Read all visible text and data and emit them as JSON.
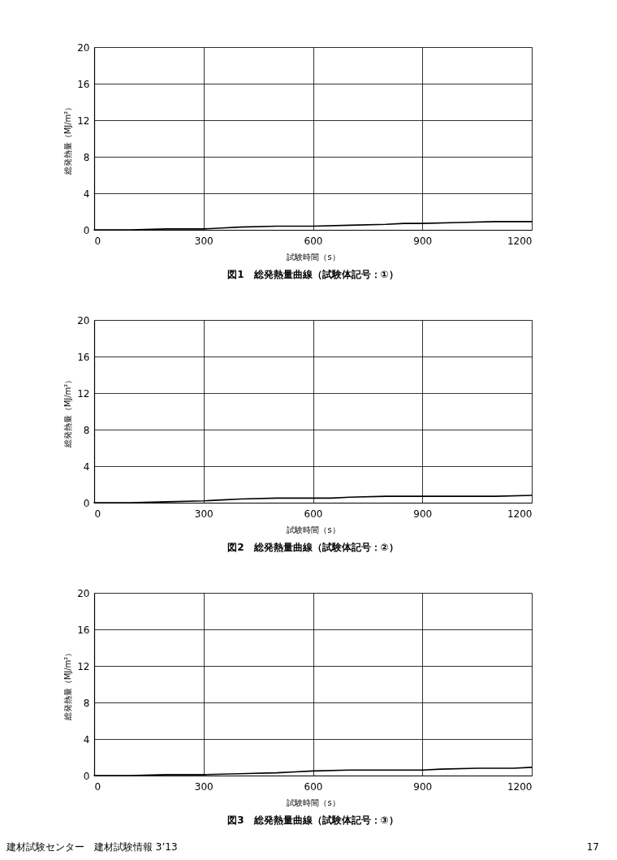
{
  "chart_data": [
    {
      "type": "line",
      "title": "図1　総発熱量曲線（試験体記号：①）",
      "xlabel": "試験時間（s）",
      "ylabel": "総発熱量（MJ/m²）",
      "xlim": [
        0,
        1200
      ],
      "ylim": [
        0,
        20
      ],
      "xticks": [
        0,
        300,
        600,
        900,
        1200
      ],
      "yticks": [
        0,
        4,
        8,
        12,
        16,
        20
      ],
      "grid": true,
      "line_style": "solid",
      "series": [
        {
          "color": "#000000",
          "x": [
            0,
            100,
            200,
            300,
            350,
            400,
            500,
            600,
            700,
            800,
            850,
            900,
            1000,
            1100,
            1200
          ],
          "values": [
            0,
            0,
            0.1,
            0.1,
            0.2,
            0.3,
            0.4,
            0.4,
            0.5,
            0.6,
            0.7,
            0.7,
            0.8,
            0.9,
            0.9
          ]
        }
      ]
    },
    {
      "type": "line",
      "title": "図2　総発熱量曲線（試験体記号：②）",
      "xlabel": "試験時間（s）",
      "ylabel": "総発熱量（MJ/m²）",
      "xlim": [
        0,
        1200
      ],
      "ylim": [
        0,
        20
      ],
      "xticks": [
        0,
        300,
        600,
        900,
        1200
      ],
      "yticks": [
        0,
        4,
        8,
        12,
        16,
        20
      ],
      "grid": true,
      "line_style": "solid",
      "series": [
        {
          "color": "#000000",
          "x": [
            0,
            100,
            200,
            300,
            350,
            400,
            500,
            600,
            650,
            700,
            800,
            900,
            1000,
            1100,
            1200
          ],
          "values": [
            0,
            0,
            0.1,
            0.2,
            0.3,
            0.4,
            0.5,
            0.5,
            0.5,
            0.6,
            0.7,
            0.7,
            0.7,
            0.7,
            0.8
          ]
        }
      ]
    },
    {
      "type": "line",
      "title": "図3　総発熱量曲線（試験体記号：③）",
      "xlabel": "試験時間（s）",
      "ylabel": "総発熱量（MJ/m²）",
      "xlim": [
        0,
        1200
      ],
      "ylim": [
        0,
        20
      ],
      "xticks": [
        0,
        300,
        600,
        900,
        1200
      ],
      "yticks": [
        0,
        4,
        8,
        12,
        16,
        20
      ],
      "grid": true,
      "line_style": "solid",
      "series": [
        {
          "color": "#000000",
          "x": [
            0,
            100,
            200,
            300,
            400,
            500,
            550,
            600,
            700,
            800,
            900,
            950,
            1050,
            1150,
            1200
          ],
          "values": [
            0,
            0,
            0.1,
            0.1,
            0.2,
            0.3,
            0.4,
            0.5,
            0.6,
            0.6,
            0.6,
            0.7,
            0.8,
            0.8,
            0.9
          ]
        }
      ],
      "annotations": [
        "建材試験センター　建材試験情報 3’13",
        "17"
      ]
    }
  ]
}
